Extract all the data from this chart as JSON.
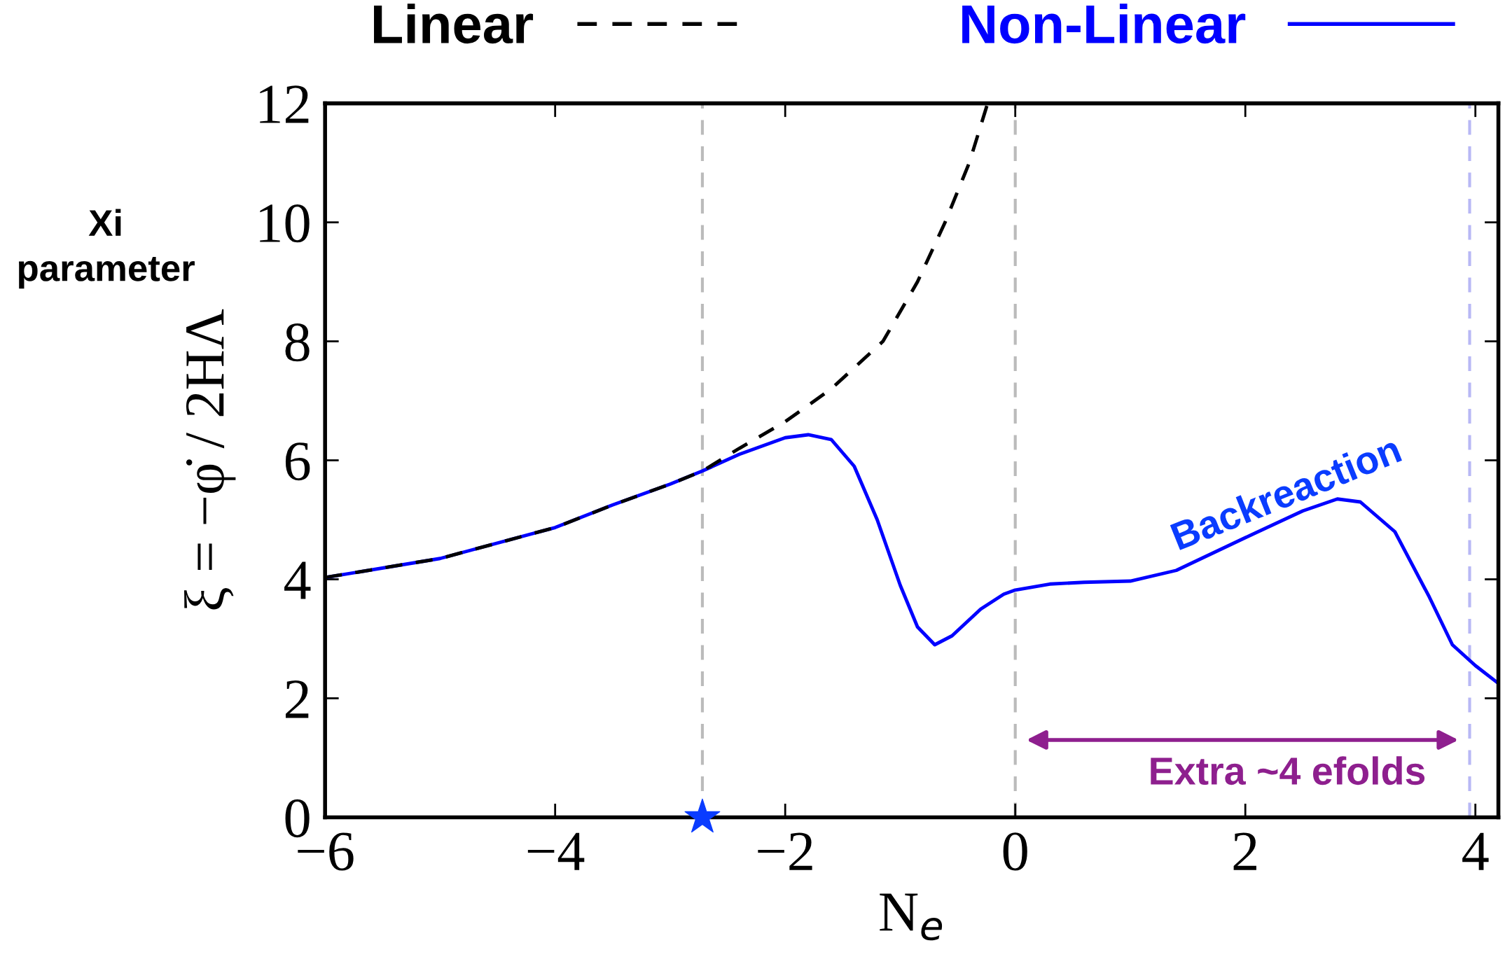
{
  "chart_data": {
    "type": "line",
    "xlabel": "N$_{e}$",
    "ylabel": "ξ = −φ̇ / 2HΛ",
    "legend": "top",
    "grid": false,
    "xlim": [
      -6,
      4.2
    ],
    "ylim": [
      0,
      12
    ],
    "xticks": [
      -6,
      -4,
      -2,
      0,
      2,
      4
    ],
    "yticks": [
      0,
      2,
      4,
      6,
      8,
      10,
      12
    ],
    "series": [
      {
        "name": "Linear",
        "line_style": "dashed",
        "color": "#000000",
        "x": [
          -6,
          -5,
          -4,
          -3.5,
          -3,
          -2.72,
          -2.4,
          -2,
          -1.6,
          -1.15,
          -0.85,
          -0.61,
          -0.4,
          -0.24
        ],
        "values": [
          4.03,
          4.35,
          4.87,
          5.25,
          5.6,
          5.82,
          6.2,
          6.65,
          7.2,
          8,
          9,
          10,
          11,
          12
        ]
      },
      {
        "name": "Non-Linear",
        "line_style": "solid",
        "color": "#0000ff",
        "x": [
          -6,
          -5,
          -4,
          -3.5,
          -3,
          -2.72,
          -2.4,
          -2,
          -1.8,
          -1.6,
          -1.4,
          -1.2,
          -1.0,
          -0.85,
          -0.7,
          -0.55,
          -0.3,
          -0.1,
          0,
          0.3,
          0.6,
          1.0,
          1.4,
          2.0,
          2.5,
          2.8,
          3.0,
          3.3,
          3.6,
          3.8,
          4.0,
          4.2
        ],
        "values": [
          4.03,
          4.35,
          4.87,
          5.25,
          5.6,
          5.82,
          6.1,
          6.38,
          6.43,
          6.35,
          5.9,
          5.0,
          3.9,
          3.2,
          2.9,
          3.05,
          3.5,
          3.75,
          3.82,
          3.92,
          3.95,
          3.97,
          4.15,
          4.7,
          5.15,
          5.35,
          5.3,
          4.8,
          3.7,
          2.9,
          2.55,
          2.25
        ]
      },
      {
        "type": "scatter",
        "marker": "star",
        "color": "#0a3cff",
        "x": [
          -2.72
        ],
        "values": [
          0
        ]
      }
    ],
    "ref_lines": [
      {
        "axis": "x",
        "value": -2.72,
        "color": "#bbbbbb",
        "line_style": "dashed"
      },
      {
        "axis": "x",
        "value": 0,
        "color": "#bbbbbb",
        "line_style": "dashed"
      },
      {
        "axis": "x",
        "value": 3.95,
        "color": "#b8b8f5",
        "line_style": "dashed"
      }
    ],
    "annotations": [
      "Xi parameter",
      "Backreaction",
      "Extra ~4 efolds"
    ]
  }
}
